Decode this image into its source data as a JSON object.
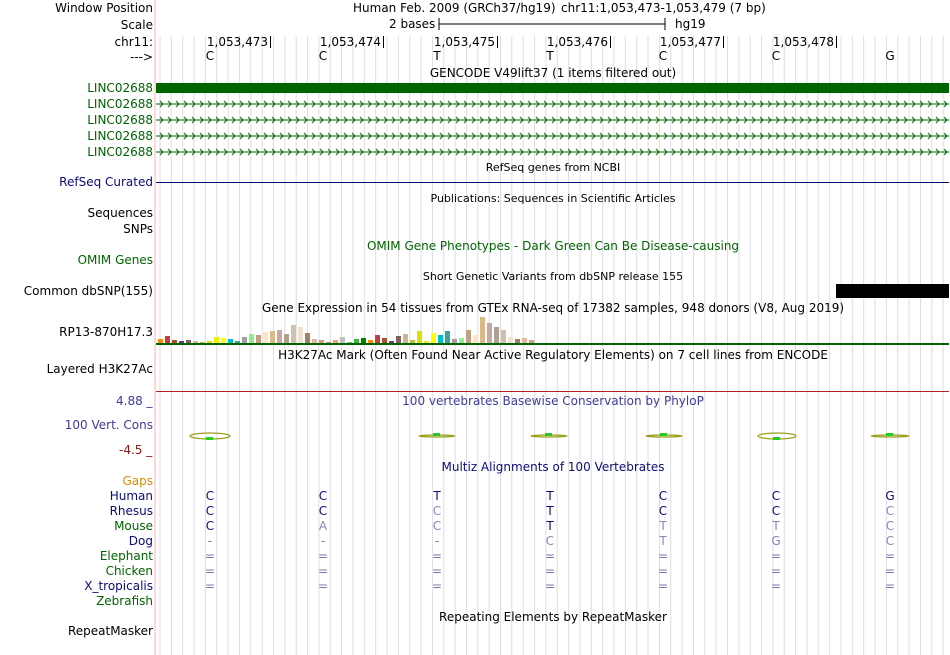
{
  "colors": {
    "gene_green": "#006400",
    "gencode_label": "#006400",
    "refseq_blue": "#0c0c78",
    "omim_green": "#006400",
    "cons_blue": "#3c3c9c",
    "cons_red": "#8b1a1a",
    "multiz_navy": "#0c0c78",
    "gaps_orange": "#d98c00",
    "human_navy": "#0c0c78",
    "h3k27_red": "#b22222",
    "grid_line": "#dcdce8"
  },
  "header": {
    "window_position_label": "Window Position",
    "assembly": "Human Feb. 2009 (GRCh37/hg19)",
    "position": "chr11:1,053,473-1,053,479 (7 bp)",
    "scale_label": "Scale",
    "scale_bases": "2 bases",
    "scale_db": "hg19",
    "chrom_label": "chr11:",
    "strand_label": "--->",
    "coords": [
      "1,053,473",
      "1,053,474",
      "1,053,475",
      "1,053,476",
      "1,053,477",
      "1,053,478"
    ],
    "bases": [
      "C",
      "C",
      "T",
      "T",
      "C",
      "C",
      "G"
    ]
  },
  "gencode": {
    "title": "GENCODE V49lift37 (1 items filtered out)",
    "genes": [
      "LINC02688",
      "LINC02688",
      "LINC02688",
      "LINC02688",
      "LINC02688"
    ]
  },
  "refseq": {
    "title": "RefSeq genes from NCBI",
    "label": "RefSeq Curated"
  },
  "publications": {
    "title": "Publications: Sequences in Scientific Articles",
    "label_sequences": "Sequences",
    "label_snps": "SNPs"
  },
  "omim": {
    "title": "OMIM Gene Phenotypes - Dark Green Can Be Disease-causing",
    "label": "OMIM Genes"
  },
  "dbsnp": {
    "title": "Short Genetic Variants from dbSNP release 155",
    "label": "Common dbSNP(155)"
  },
  "gtex": {
    "title": "Gene Expression in 54 tissues from GTEx RNA-seq of 17382 samples, 948 donors (V8, Aug 2019)",
    "label": "RP13-870H17.3"
  },
  "h3k27": {
    "title": "H3K27Ac Mark (Often Found Near Active Regulatory Elements) on 7 cell lines from ENCODE",
    "label": "Layered H3K27Ac"
  },
  "conservation": {
    "title": "100 vertebrates Basewise Conservation by PhyloP",
    "label": "100 Vert. Cons",
    "max": "4.88 _",
    "min": "-4.5 _"
  },
  "multiz": {
    "title": "Multiz Alignments of 100 Vertebrates",
    "gaps_label": "Gaps",
    "species": [
      {
        "name": "Human",
        "bases": [
          "C",
          "C",
          "T",
          "T",
          "C",
          "C",
          "G"
        ],
        "color": "#0c0c78"
      },
      {
        "name": "Rhesus",
        "bases": [
          "C",
          "C",
          "C",
          "T",
          "C",
          "C",
          "C"
        ],
        "color": "#0c0c78"
      },
      {
        "name": "Mouse",
        "bases": [
          "C",
          "A",
          "C",
          "T",
          "T",
          "T",
          "C"
        ],
        "color": "#006400"
      },
      {
        "name": "Dog",
        "bases": [
          "-",
          "-",
          "-",
          "C",
          "T",
          "G",
          "C"
        ],
        "color": "#0c0c78"
      },
      {
        "name": "Elephant",
        "bases": [
          "=",
          "=",
          "=",
          "=",
          "=",
          "=",
          "="
        ],
        "color": "#006400"
      },
      {
        "name": "Chicken",
        "bases": [
          "=",
          "=",
          "=",
          "=",
          "=",
          "=",
          "="
        ],
        "color": "#006400"
      },
      {
        "name": "X_tropicalis",
        "bases": [
          "=",
          "=",
          "=",
          "=",
          "=",
          "=",
          "="
        ],
        "color": "#0c0c78"
      },
      {
        "name": "Zebrafish",
        "bases": [
          "",
          "",
          "",
          "",
          "",
          "",
          ""
        ],
        "color": "#006400"
      }
    ]
  },
  "repeatmasker": {
    "title": "Repeating Elements by RepeatMasker",
    "label": "RepeatMasker"
  }
}
